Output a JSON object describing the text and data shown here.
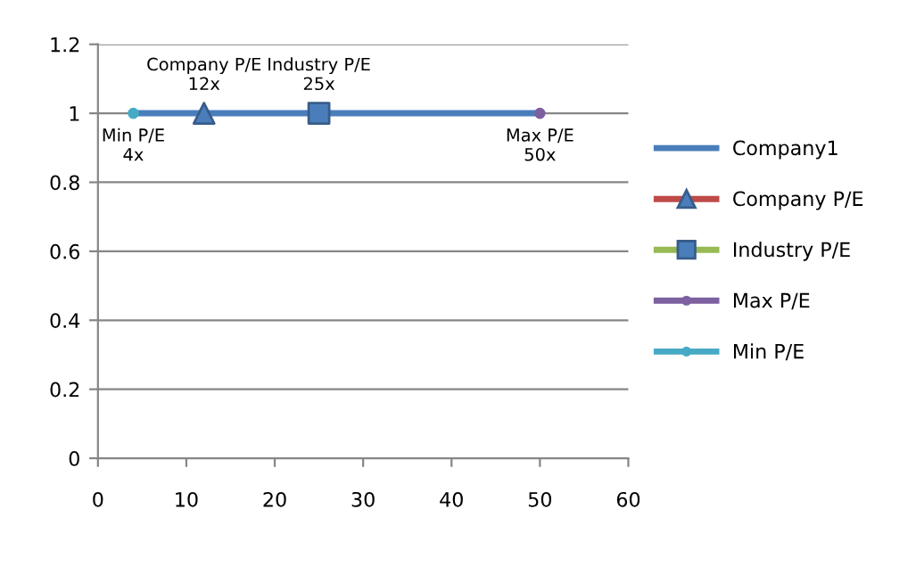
{
  "chart_data": {
    "type": "line",
    "xlim": [
      0,
      60
    ],
    "xticks": [
      0,
      10,
      20,
      30,
      40,
      50,
      60
    ],
    "ylim": [
      0,
      1.2
    ],
    "yticks": [
      0,
      0.2,
      0.4,
      0.6,
      0.8,
      1,
      1.2
    ],
    "grid": "y",
    "legend": "right",
    "series": [
      {
        "name": "Company1",
        "color": "#4a7ebb",
        "x": [
          4,
          50
        ],
        "values": [
          1,
          1
        ],
        "marker": "none"
      },
      {
        "name": "Company P/E",
        "color": "#be4b48",
        "colors": [
          "#4a7ebb"
        ],
        "x": [
          12
        ],
        "values": [
          1
        ],
        "marker": "triangle"
      },
      {
        "name": "Industry P/E",
        "color": "#98b954",
        "colors": [
          "#4a7ebb"
        ],
        "x": [
          25
        ],
        "values": [
          1
        ],
        "marker": "square"
      },
      {
        "name": "Max P/E",
        "color": "#7d60a0",
        "x": [
          50
        ],
        "values": [
          1
        ],
        "marker": "circle"
      },
      {
        "name": "Min P/E",
        "color": "#46aac5",
        "x": [
          4
        ],
        "values": [
          1
        ],
        "marker": "circle"
      }
    ],
    "annotations": [
      {
        "text": "Company P/E\n12x",
        "x": 12,
        "y": 1
      },
      {
        "text": "Industry P/E\n25x",
        "x": 25,
        "y": 1
      },
      {
        "text": "Max P/E\n50x",
        "x": 50,
        "y": 1
      },
      {
        "text": "Min P/E\n4x",
        "x": 4,
        "y": 1
      }
    ]
  }
}
